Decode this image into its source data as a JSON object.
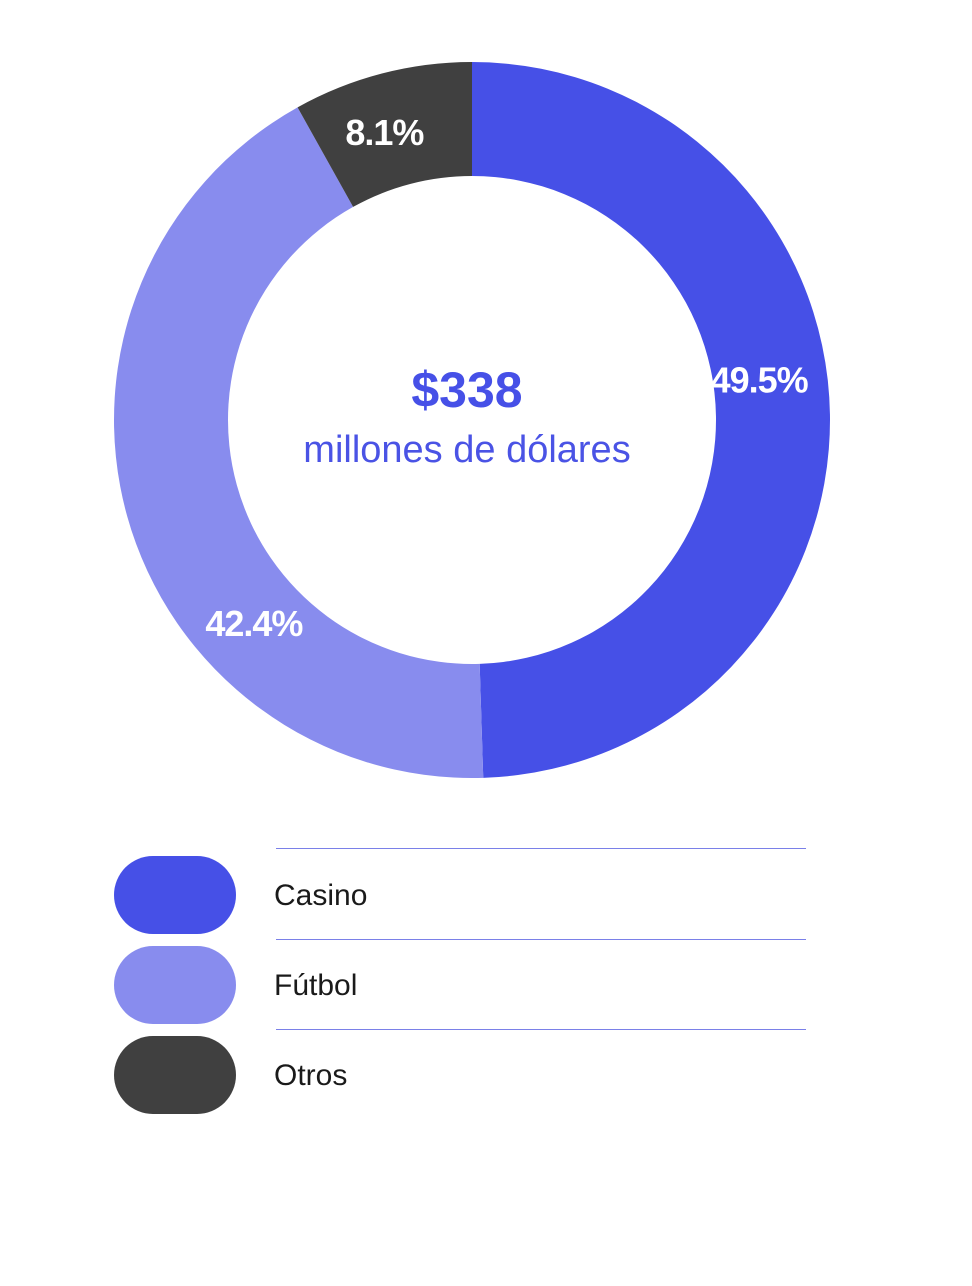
{
  "chart_data": {
    "type": "pie",
    "variant": "donut",
    "start_angle": "top",
    "direction": "clockwise",
    "slices": [
      {
        "name": "Casino",
        "value": 49.5,
        "label": "49.5%",
        "color": "#4650e7"
      },
      {
        "name": "Fútbol",
        "value": 42.4,
        "label": "42.4%",
        "color": "#888cee"
      },
      {
        "name": "Otros",
        "value": 8.1,
        "label": "8.1%",
        "color": "#404040"
      }
    ],
    "center_value": "$338",
    "center_caption": "millones de dólares",
    "legend_position": "bottom"
  },
  "legend": {
    "items": [
      {
        "label": "Casino",
        "color": "#4650e7"
      },
      {
        "label": "Fútbol",
        "color": "#888cee"
      },
      {
        "label": "Otros",
        "color": "#404040"
      }
    ]
  }
}
